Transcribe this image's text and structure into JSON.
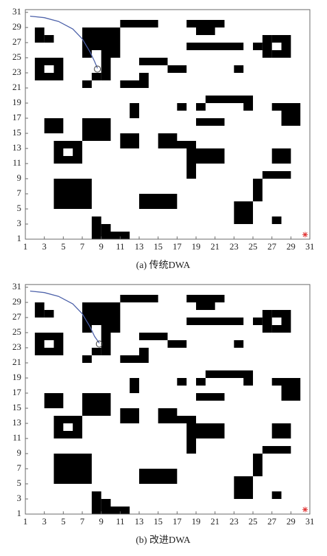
{
  "chart_data": [
    {
      "type": "gridmap",
      "caption": "(a) 传统DWA",
      "xlim": [
        1,
        31
      ],
      "ylim": [
        1,
        31
      ],
      "xticks": [
        1,
        3,
        5,
        7,
        9,
        11,
        13,
        15,
        17,
        19,
        21,
        23,
        25,
        27,
        29,
        31
      ],
      "yticks": [
        1,
        3,
        5,
        7,
        9,
        11,
        13,
        15,
        17,
        19,
        21,
        23,
        25,
        27,
        29,
        31
      ],
      "obstacles": [
        [
          2,
          3,
          27,
          29
        ],
        [
          3,
          4,
          27,
          28
        ],
        [
          2,
          5,
          24,
          25
        ],
        [
          2,
          5,
          22,
          23
        ],
        [
          2,
          3,
          23,
          24
        ],
        [
          4,
          5,
          23,
          24
        ],
        [
          7,
          11,
          26,
          29
        ],
        [
          9,
          11,
          25,
          26
        ],
        [
          7,
          8,
          25,
          26
        ],
        [
          9,
          10,
          22,
          25
        ],
        [
          8,
          9,
          22,
          23
        ],
        [
          7,
          8,
          21,
          22
        ],
        [
          11,
          15,
          29,
          30
        ],
        [
          13,
          16,
          24,
          25
        ],
        [
          16,
          18,
          23,
          24
        ],
        [
          11,
          14,
          21,
          22
        ],
        [
          13,
          14,
          22,
          23
        ],
        [
          18,
          22,
          29,
          30
        ],
        [
          19,
          21,
          28,
          29
        ],
        [
          18,
          24,
          26,
          27
        ],
        [
          23,
          24,
          23,
          24
        ],
        [
          25,
          26,
          26,
          27
        ],
        [
          26,
          27,
          25,
          28
        ],
        [
          28,
          29,
          25,
          28
        ],
        [
          27,
          28,
          27,
          28
        ],
        [
          27,
          28,
          25,
          26
        ],
        [
          12,
          13,
          17,
          19
        ],
        [
          17,
          18,
          18,
          19
        ],
        [
          20,
          25,
          19,
          20
        ],
        [
          19,
          20,
          18,
          19
        ],
        [
          24,
          25,
          18,
          19
        ],
        [
          19,
          22,
          16,
          17
        ],
        [
          27,
          30,
          18,
          19
        ],
        [
          28,
          30,
          16,
          18
        ],
        [
          3,
          5,
          15,
          17
        ],
        [
          7,
          10,
          14,
          17
        ],
        [
          11,
          13,
          13,
          15
        ],
        [
          15,
          17,
          14,
          15
        ],
        [
          15,
          19,
          13,
          14
        ],
        [
          18,
          20,
          12,
          13
        ],
        [
          19,
          22,
          11,
          13
        ],
        [
          18,
          19,
          9,
          12
        ],
        [
          4,
          7,
          13,
          14
        ],
        [
          4,
          7,
          11,
          12
        ],
        [
          4,
          5,
          12,
          13
        ],
        [
          6,
          7,
          12,
          13
        ],
        [
          27,
          29,
          11,
          13
        ],
        [
          26,
          29,
          9,
          10
        ],
        [
          25,
          26,
          6,
          9
        ],
        [
          4,
          8,
          5,
          9
        ],
        [
          13,
          17,
          5,
          7
        ],
        [
          23,
          25,
          3,
          6
        ],
        [
          27,
          28,
          3,
          4
        ],
        [
          8,
          9,
          1,
          4
        ],
        [
          9,
          10,
          1,
          3
        ],
        [
          10,
          12,
          1,
          2
        ]
      ],
      "path": {
        "color": "#4a5fa8",
        "x": [
          1.5,
          3,
          4.5,
          6,
          7,
          7.8,
          8.3,
          8.6
        ],
        "y": [
          30.5,
          30.3,
          29.8,
          28.8,
          27.5,
          25.8,
          24.5,
          23.6
        ]
      },
      "robot": [
        8.6,
        23.5
      ],
      "goal": [
        30.5,
        1.6
      ]
    },
    {
      "type": "gridmap",
      "caption": "(b) 改进DWA",
      "xlim": [
        1,
        31
      ],
      "ylim": [
        1,
        31
      ],
      "xticks": [
        1,
        3,
        5,
        7,
        9,
        11,
        13,
        15,
        17,
        19,
        21,
        23,
        25,
        27,
        29,
        31
      ],
      "yticks": [
        1,
        3,
        5,
        7,
        9,
        11,
        13,
        15,
        17,
        19,
        21,
        23,
        25,
        27,
        29,
        31
      ],
      "obstacles": [
        [
          2,
          3,
          27,
          29
        ],
        [
          3,
          4,
          27,
          28
        ],
        [
          2,
          5,
          24,
          25
        ],
        [
          2,
          5,
          22,
          23
        ],
        [
          2,
          3,
          23,
          24
        ],
        [
          4,
          5,
          23,
          24
        ],
        [
          7,
          11,
          26,
          29
        ],
        [
          9,
          11,
          25,
          26
        ],
        [
          7,
          8,
          25,
          26
        ],
        [
          9,
          10,
          22,
          25
        ],
        [
          8,
          9,
          22,
          23
        ],
        [
          7,
          8,
          21,
          22
        ],
        [
          11,
          15,
          29,
          30
        ],
        [
          13,
          16,
          24,
          25
        ],
        [
          16,
          18,
          23,
          24
        ],
        [
          11,
          14,
          21,
          22
        ],
        [
          13,
          14,
          22,
          23
        ],
        [
          18,
          22,
          29,
          30
        ],
        [
          19,
          21,
          28,
          29
        ],
        [
          18,
          24,
          26,
          27
        ],
        [
          23,
          24,
          23,
          24
        ],
        [
          25,
          26,
          26,
          27
        ],
        [
          26,
          27,
          25,
          28
        ],
        [
          28,
          29,
          25,
          28
        ],
        [
          27,
          28,
          27,
          28
        ],
        [
          27,
          28,
          25,
          26
        ],
        [
          12,
          13,
          17,
          19
        ],
        [
          17,
          18,
          18,
          19
        ],
        [
          20,
          25,
          19,
          20
        ],
        [
          19,
          20,
          18,
          19
        ],
        [
          24,
          25,
          18,
          19
        ],
        [
          19,
          22,
          16,
          17
        ],
        [
          27,
          30,
          18,
          19
        ],
        [
          28,
          30,
          16,
          18
        ],
        [
          3,
          5,
          15,
          17
        ],
        [
          7,
          10,
          14,
          17
        ],
        [
          11,
          13,
          13,
          15
        ],
        [
          15,
          17,
          14,
          15
        ],
        [
          15,
          19,
          13,
          14
        ],
        [
          18,
          20,
          12,
          13
        ],
        [
          19,
          22,
          11,
          13
        ],
        [
          18,
          19,
          9,
          12
        ],
        [
          4,
          7,
          13,
          14
        ],
        [
          4,
          7,
          11,
          12
        ],
        [
          4,
          5,
          12,
          13
        ],
        [
          6,
          7,
          12,
          13
        ],
        [
          27,
          29,
          11,
          13
        ],
        [
          26,
          29,
          9,
          10
        ],
        [
          25,
          26,
          6,
          9
        ],
        [
          4,
          8,
          5,
          9
        ],
        [
          13,
          17,
          5,
          7
        ],
        [
          23,
          25,
          3,
          6
        ],
        [
          27,
          28,
          3,
          4
        ],
        [
          8,
          9,
          1,
          4
        ],
        [
          9,
          10,
          1,
          3
        ],
        [
          10,
          12,
          1,
          2
        ]
      ],
      "path": {
        "color": "#4a5fa8",
        "x": [
          1.5,
          3,
          4.5,
          6,
          7,
          7.8,
          8.3,
          8.8
        ],
        "y": [
          30.5,
          30.3,
          29.8,
          28.8,
          27.5,
          25.8,
          24.5,
          23.6
        ]
      },
      "robot": [
        8.8,
        23.5
      ],
      "goal": [
        30.5,
        1.6
      ]
    }
  ]
}
